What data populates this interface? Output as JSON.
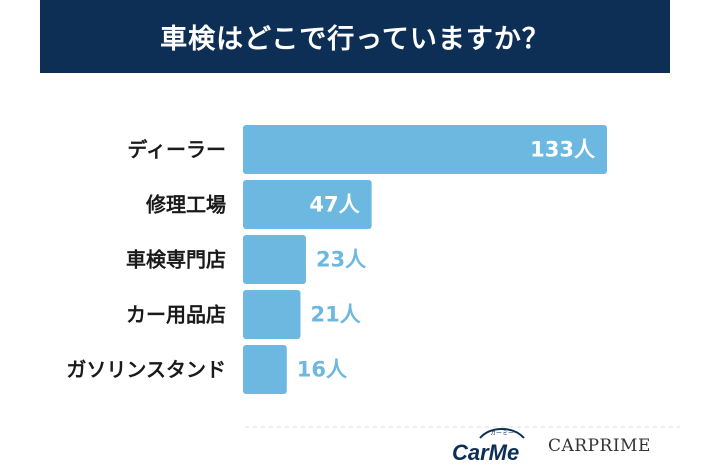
{
  "chart_data": {
    "type": "bar",
    "orientation": "horizontal",
    "title": "車検はどこで行っていますか？",
    "categories": [
      "ディーラー",
      "修理工場",
      "車検専門店",
      "カー用品店",
      "ガソリンスタンド"
    ],
    "values": [
      133,
      47,
      23,
      21,
      16
    ],
    "value_labels": [
      "133人",
      "47人",
      "23人",
      "21人",
      "16人"
    ],
    "unit": "人",
    "xlim": [
      0,
      133
    ],
    "grid": false,
    "legend": "none"
  },
  "colors": {
    "bar": "#6cb8e0",
    "title_background": "#0d2e55",
    "title_text": "#ffffff",
    "category_text": "#1a1a1a",
    "inside_value_text": "#ffffff",
    "outside_value_text": "#6cb8e0"
  },
  "logos": {
    "carme": {
      "text": "CarMe",
      "ruby": "カーミー",
      "icon": "car-outline-icon"
    },
    "carprime": {
      "text": "CARPRIME"
    }
  }
}
